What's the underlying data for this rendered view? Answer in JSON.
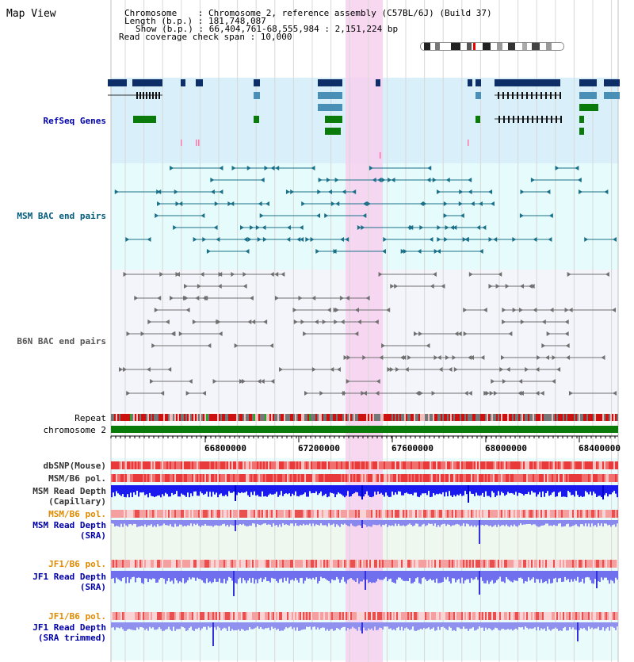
{
  "app": {
    "title": "Map View"
  },
  "info": {
    "chromosome_label": "Chromosome    : Chromosome 2, reference assembly (C57BL/6J) (Build 37)",
    "length_label": "Length (b.p.) : 181,748,087",
    "show_label": "Show (b.p.) : 66,404,761-68,555,984 : 2,151,224 bp",
    "coverage_label": "Read coverage check span : 10,000"
  },
  "tracks": {
    "refseq": "RefSeq Genes",
    "msm_bac": "MSM BAC end pairs",
    "b6n_bac": "B6N BAC end pairs",
    "repeat": "Repeat",
    "chromosome": "chromosome 2",
    "dbsnp": "dbSNP(Mouse)",
    "msm_b6_pol_1": "MSM/B6 pol.",
    "msm_depth_cap_1": "MSM Read Depth",
    "msm_depth_cap_2": "(Capillary)",
    "msm_b6_pol_2": "MSM/B6 pol.",
    "msm_depth_sra_1": "MSM Read Depth",
    "msm_depth_sra_2": "(SRA)",
    "jf1_b6_pol_1": "JF1/B6 pol.",
    "jf1_depth_sra_1": "JF1 Read Depth",
    "jf1_depth_sra_2": "(SRA)",
    "jf1_b6_pol_2": "JF1/B6 pol.",
    "jf1_depth_trim_1": "JF1 Read Depth",
    "jf1_depth_trim_2": "(SRA trimmed)"
  },
  "axis": {
    "ticks": [
      "66800000",
      "67200000",
      "67600000",
      "68000000",
      "68400000"
    ]
  },
  "colors": {
    "highlight": "#f7d0ef",
    "refseq_bg": "#d9f0fb",
    "msm_bg": "#e6fbfb",
    "b6n_bg": "#f2f2fb",
    "gene_dark": "#0d2e66",
    "gene_mid": "#4a8fb5",
    "gene_green": "#0a7a0a",
    "chromosome_green": "#0a7a0a"
  }
}
